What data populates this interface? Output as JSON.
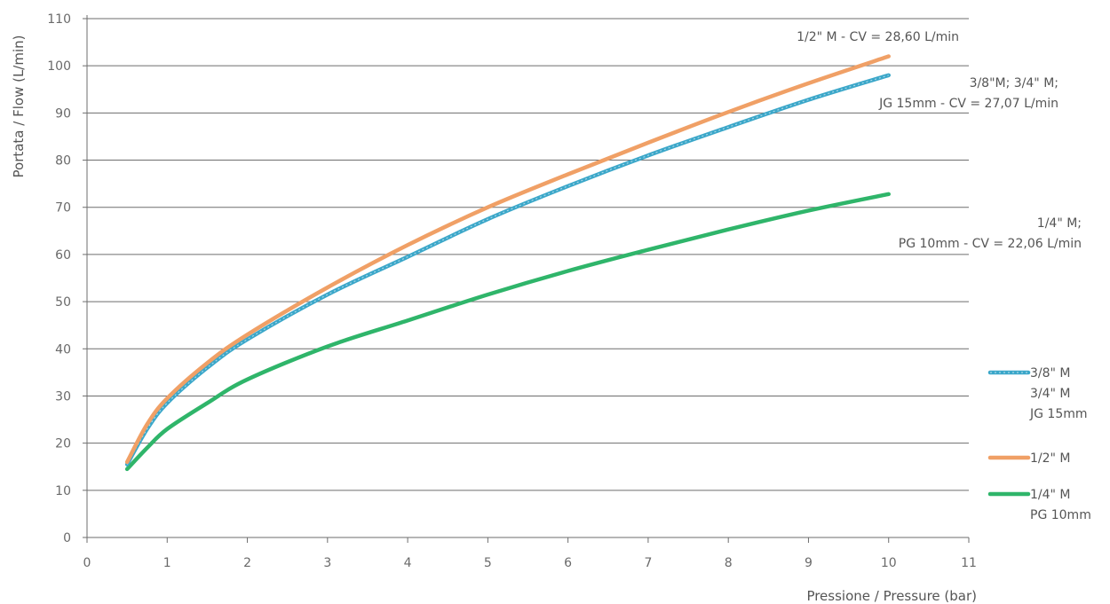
{
  "chart_data": {
    "type": "line",
    "title": "",
    "xlabel": "Pressione / Pressure (bar)",
    "ylabel": "Portata / Flow  (L/min)",
    "xlim": [
      0,
      11
    ],
    "ylim": [
      0,
      110
    ],
    "xticks": [
      0,
      1,
      2,
      3,
      4,
      5,
      6,
      7,
      8,
      9,
      10,
      11
    ],
    "yticks": [
      0,
      10,
      20,
      30,
      40,
      50,
      60,
      70,
      80,
      90,
      100,
      110
    ],
    "grid": "horizontal",
    "legend_position": "right",
    "series": [
      {
        "key": "s38",
        "legend_lines": [
          "3/8\" M",
          "3/4\" M",
          "JG 15mm"
        ],
        "color": "#3ba7c9",
        "dashed_center": true,
        "annotation_lines": [
          "3/8\"M; 3/4\" M;",
          "JG 15mm - CV = 27,07 L/min"
        ],
        "x": [
          0.5,
          0.75,
          1,
          1.5,
          2,
          3,
          4,
          5,
          6,
          7,
          8,
          9,
          10
        ],
        "y": [
          15.5,
          23,
          28.5,
          36,
          42,
          51.5,
          59.5,
          67.5,
          74.5,
          81,
          87,
          92.8,
          98
        ]
      },
      {
        "key": "s12",
        "legend_lines": [
          "1/2\" M"
        ],
        "color": "#f0a066",
        "dashed_center": false,
        "annotation_lines": [
          "1/2\" M - CV = 28,60 L/min"
        ],
        "x": [
          0.5,
          0.75,
          1,
          1.5,
          2,
          3,
          4,
          5,
          6,
          7,
          8,
          9,
          10
        ],
        "y": [
          16,
          24,
          29.5,
          37,
          43,
          53,
          62,
          70,
          77,
          83.7,
          90.2,
          96.3,
          102
        ]
      },
      {
        "key": "s14",
        "legend_lines": [
          "1/4\" M",
          "PG 10mm"
        ],
        "color": "#2fb56a",
        "dashed_center": false,
        "annotation_lines": [
          "1/4\" M;",
          "PG 10mm - CV = 22,06 L/min"
        ],
        "x": [
          0.5,
          0.75,
          1,
          1.5,
          2,
          3,
          4,
          5,
          6,
          7,
          8,
          9,
          10
        ],
        "y": [
          14.5,
          19,
          23,
          28.5,
          33.5,
          40.5,
          46,
          51.5,
          56.5,
          61,
          65.3,
          69.3,
          72.8
        ]
      }
    ]
  }
}
